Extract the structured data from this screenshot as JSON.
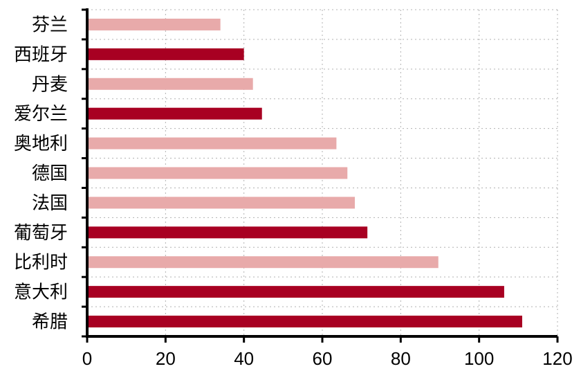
{
  "chart_data": {
    "type": "bar",
    "orientation": "horizontal",
    "categories": [
      "芬兰",
      "西班牙",
      "丹麦",
      "爱尔兰",
      "奥地利",
      "德国",
      "法国",
      "葡萄牙",
      "比利时",
      "意大利",
      "希腊"
    ],
    "values": [
      34,
      40,
      42.3,
      44.6,
      63.6,
      66.4,
      68.3,
      71.5,
      89.6,
      106.4,
      111
    ],
    "bar_colors": [
      "#e8aaaa",
      "#a80022",
      "#e8aaaa",
      "#a80022",
      "#e8aaaa",
      "#e8aaaa",
      "#e8aaaa",
      "#a80022",
      "#e8aaaa",
      "#a80022",
      "#a80022"
    ],
    "xlim": [
      0,
      120
    ],
    "xticks": [
      0,
      20,
      40,
      60,
      80,
      100,
      120
    ],
    "grid": true,
    "title": "",
    "xlabel": "",
    "ylabel": ""
  }
}
